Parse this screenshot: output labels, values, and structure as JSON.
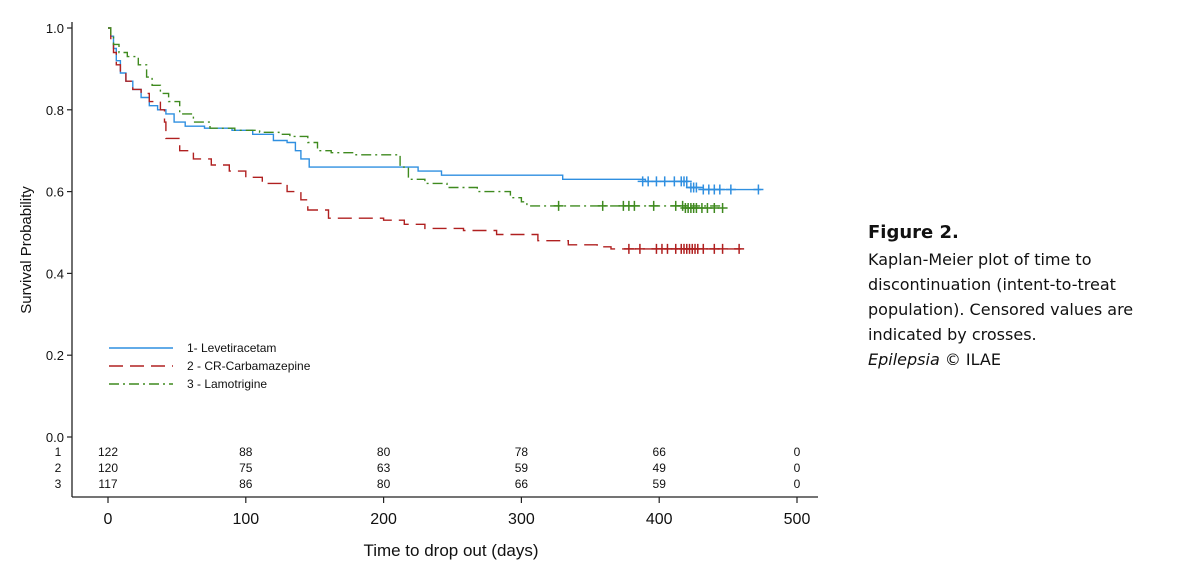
{
  "chart_data": {
    "type": "line",
    "subtype": "kaplan-meier step curves with censoring crosses",
    "xlabel": "Time to drop out (days)",
    "ylabel": "Survival Probability",
    "xlim": [
      0,
      500
    ],
    "ylim": [
      0.0,
      1.0
    ],
    "x_ticks": [
      0,
      100,
      200,
      300,
      400,
      500
    ],
    "y_ticks": [
      "0.0",
      "0.2",
      "0.4",
      "0.6",
      "0.8",
      "1.0"
    ],
    "grid": false,
    "legend_position": "lower-left",
    "series": [
      {
        "name": "1- Levetiracetam",
        "color": "#2f8fe0",
        "dash": "solid",
        "steps": [
          [
            0,
            1.0
          ],
          [
            2,
            0.98
          ],
          [
            4,
            0.95
          ],
          [
            6,
            0.92
          ],
          [
            9,
            0.89
          ],
          [
            13,
            0.87
          ],
          [
            18,
            0.85
          ],
          [
            24,
            0.83
          ],
          [
            30,
            0.81
          ],
          [
            36,
            0.8
          ],
          [
            42,
            0.79
          ],
          [
            48,
            0.77
          ],
          [
            56,
            0.76
          ],
          [
            70,
            0.755
          ],
          [
            90,
            0.75
          ],
          [
            105,
            0.74
          ],
          [
            120,
            0.725
          ],
          [
            130,
            0.72
          ],
          [
            136,
            0.7
          ],
          [
            140,
            0.68
          ],
          [
            146,
            0.66
          ],
          [
            225,
            0.65
          ],
          [
            242,
            0.64
          ],
          [
            330,
            0.63
          ],
          [
            390,
            0.625
          ],
          [
            420,
            0.61
          ],
          [
            432,
            0.605
          ],
          [
            474,
            0.605
          ]
        ],
        "censored": [
          [
            388,
            0.625
          ],
          [
            392,
            0.625
          ],
          [
            398,
            0.625
          ],
          [
            404,
            0.625
          ],
          [
            411,
            0.625
          ],
          [
            416,
            0.625
          ],
          [
            418,
            0.625
          ],
          [
            420,
            0.625
          ],
          [
            423,
            0.61
          ],
          [
            425,
            0.61
          ],
          [
            427,
            0.61
          ],
          [
            432,
            0.605
          ],
          [
            436,
            0.605
          ],
          [
            440,
            0.605
          ],
          [
            444,
            0.605
          ],
          [
            452,
            0.605
          ],
          [
            472,
            0.605
          ]
        ]
      },
      {
        "name": "2 - CR-Carbamazepine",
        "color": "#b02020",
        "dash": "long-dash",
        "steps": [
          [
            0,
            1.0
          ],
          [
            2,
            0.97
          ],
          [
            4,
            0.94
          ],
          [
            6,
            0.91
          ],
          [
            9,
            0.89
          ],
          [
            13,
            0.87
          ],
          [
            18,
            0.85
          ],
          [
            24,
            0.84
          ],
          [
            30,
            0.82
          ],
          [
            38,
            0.8
          ],
          [
            41,
            0.77
          ],
          [
            42,
            0.73
          ],
          [
            52,
            0.7
          ],
          [
            62,
            0.68
          ],
          [
            75,
            0.665
          ],
          [
            88,
            0.65
          ],
          [
            100,
            0.635
          ],
          [
            112,
            0.62
          ],
          [
            130,
            0.6
          ],
          [
            140,
            0.58
          ],
          [
            145,
            0.555
          ],
          [
            160,
            0.535
          ],
          [
            200,
            0.53
          ],
          [
            215,
            0.52
          ],
          [
            230,
            0.51
          ],
          [
            258,
            0.505
          ],
          [
            282,
            0.495
          ],
          [
            312,
            0.48
          ],
          [
            334,
            0.47
          ],
          [
            355,
            0.465
          ],
          [
            365,
            0.46
          ],
          [
            460,
            0.46
          ]
        ],
        "censored": [
          [
            378,
            0.46
          ],
          [
            386,
            0.46
          ],
          [
            398,
            0.46
          ],
          [
            402,
            0.46
          ],
          [
            406,
            0.46
          ],
          [
            412,
            0.46
          ],
          [
            416,
            0.46
          ],
          [
            418,
            0.46
          ],
          [
            420,
            0.46
          ],
          [
            422,
            0.46
          ],
          [
            424,
            0.46
          ],
          [
            426,
            0.46
          ],
          [
            428,
            0.46
          ],
          [
            432,
            0.46
          ],
          [
            440,
            0.46
          ],
          [
            446,
            0.46
          ],
          [
            458,
            0.46
          ]
        ]
      },
      {
        "name": "3 - Lamotrigine",
        "color": "#3f8a1f",
        "dash": "dash-dot",
        "steps": [
          [
            0,
            1.0
          ],
          [
            2,
            0.98
          ],
          [
            4,
            0.96
          ],
          [
            8,
            0.94
          ],
          [
            14,
            0.93
          ],
          [
            22,
            0.91
          ],
          [
            28,
            0.88
          ],
          [
            32,
            0.86
          ],
          [
            38,
            0.84
          ],
          [
            44,
            0.82
          ],
          [
            52,
            0.79
          ],
          [
            62,
            0.77
          ],
          [
            74,
            0.755
          ],
          [
            92,
            0.75
          ],
          [
            110,
            0.745
          ],
          [
            124,
            0.74
          ],
          [
            132,
            0.735
          ],
          [
            145,
            0.72
          ],
          [
            152,
            0.7
          ],
          [
            162,
            0.695
          ],
          [
            180,
            0.69
          ],
          [
            200,
            0.69
          ],
          [
            212,
            0.66
          ],
          [
            218,
            0.63
          ],
          [
            230,
            0.62
          ],
          [
            246,
            0.61
          ],
          [
            268,
            0.6
          ],
          [
            292,
            0.585
          ],
          [
            300,
            0.575
          ],
          [
            304,
            0.565
          ],
          [
            445,
            0.56
          ]
        ],
        "censored": [
          [
            327,
            0.565
          ],
          [
            359,
            0.565
          ],
          [
            374,
            0.565
          ],
          [
            378,
            0.565
          ],
          [
            382,
            0.565
          ],
          [
            396,
            0.565
          ],
          [
            412,
            0.565
          ],
          [
            417,
            0.565
          ],
          [
            419,
            0.56
          ],
          [
            421,
            0.56
          ],
          [
            423,
            0.56
          ],
          [
            425,
            0.56
          ],
          [
            427,
            0.56
          ],
          [
            431,
            0.56
          ],
          [
            435,
            0.56
          ],
          [
            440,
            0.56
          ],
          [
            446,
            0.56
          ]
        ]
      }
    ],
    "risk_table": {
      "times": [
        0,
        100,
        200,
        300,
        400,
        500
      ],
      "rows": [
        {
          "label": "1",
          "values": [
            "122",
            "88",
            "80",
            "78",
            "66",
            "0"
          ]
        },
        {
          "label": "2",
          "values": [
            "120",
            "75",
            "63",
            "59",
            "49",
            "0"
          ]
        },
        {
          "label": "3",
          "values": [
            "117",
            "86",
            "80",
            "66",
            "59",
            "0"
          ]
        }
      ]
    }
  },
  "caption": {
    "title": "Figure 2.",
    "body": "Kaplan-Meier plot of time to discontinuation (intent-to-treat population). Censored values are indicated by crosses.",
    "journal": "Epilepsia",
    "credit": "© ILAE"
  }
}
